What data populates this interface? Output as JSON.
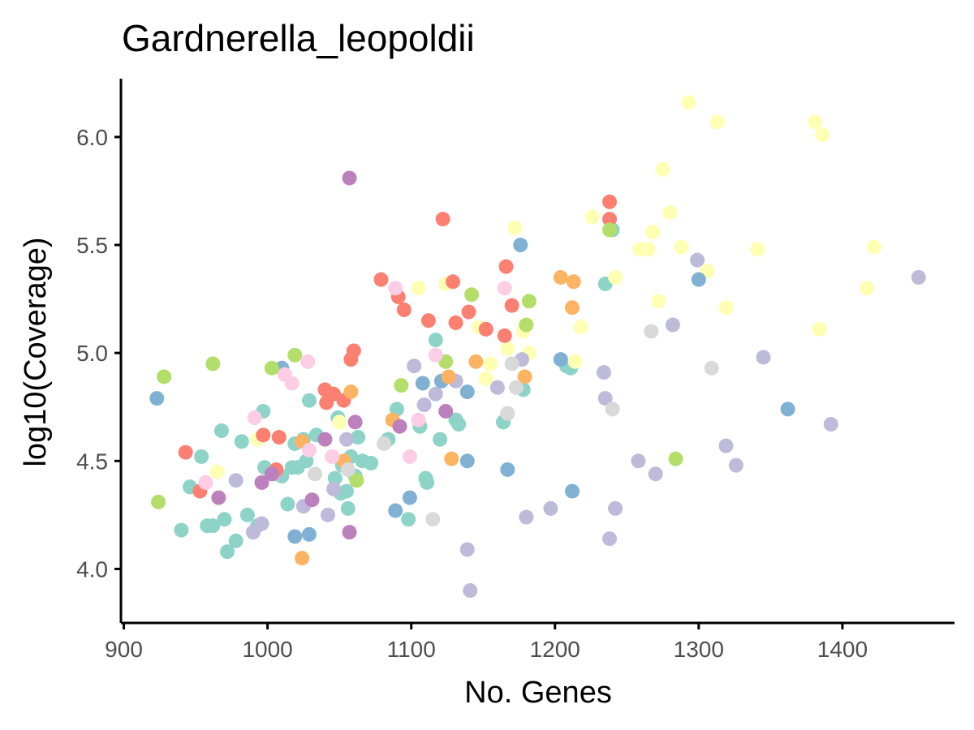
{
  "chart_data": {
    "type": "scatter",
    "title": "Gardnerella_leopoldii",
    "xlabel": "No. Genes",
    "ylabel": "log10(Coverage)",
    "xlim": [
      898,
      1478
    ],
    "ylim": [
      3.75,
      6.27
    ],
    "xticks": [
      900,
      1000,
      1100,
      1200,
      1300,
      1400
    ],
    "yticks": [
      4.0,
      4.5,
      5.0,
      5.5,
      6.0
    ],
    "ytick_labels": [
      "4.0",
      "4.5",
      "5.0",
      "5.5",
      "6.0"
    ],
    "grid": false,
    "legend": "none",
    "palette": [
      "#8DD3C7",
      "#FFFFB3",
      "#BEBADA",
      "#FB8072",
      "#80B1D3",
      "#FDB462",
      "#B3DE69",
      "#FCCDE5",
      "#D9D9D9",
      "#BC80BD"
    ],
    "series": [
      {
        "color": "#8DD3C7",
        "x": [
          940,
          946,
          954,
          958,
          962,
          968,
          970,
          972,
          978,
          982,
          986,
          993,
          997,
          998,
          1010,
          1014,
          1017,
          1019,
          1021,
          1025,
          1027,
          1029,
          1034,
          1047,
          1049,
          1051,
          1052,
          1055,
          1056,
          1058,
          1061,
          1063,
          1066,
          1072,
          1084,
          1090,
          1098,
          1106,
          1110,
          1111,
          1117,
          1120,
          1131,
          1133,
          1164,
          1178,
          1208,
          1211,
          1235,
          1240
        ],
        "y": [
          4.18,
          4.38,
          4.52,
          4.2,
          4.2,
          4.64,
          4.23,
          4.08,
          4.13,
          4.59,
          4.25,
          4.2,
          4.73,
          4.47,
          4.43,
          4.3,
          4.47,
          4.58,
          4.47,
          4.6,
          4.5,
          4.78,
          4.62,
          4.42,
          4.7,
          4.35,
          4.48,
          4.36,
          4.28,
          4.52,
          4.43,
          4.61,
          4.5,
          4.49,
          4.6,
          4.74,
          4.23,
          4.66,
          4.42,
          4.4,
          5.06,
          4.6,
          4.69,
          4.67,
          4.68,
          4.83,
          4.94,
          4.93,
          5.32,
          5.57
        ]
      },
      {
        "color": "#FFFFB3",
        "x": [
          965,
          993,
          1043,
          1050,
          1105,
          1124,
          1147,
          1152,
          1155,
          1167,
          1172,
          1178,
          1182,
          1214,
          1218,
          1226,
          1242,
          1259,
          1265,
          1268,
          1272,
          1275,
          1280,
          1288,
          1293,
          1306,
          1313,
          1319,
          1341,
          1381,
          1384,
          1386,
          1417,
          1422
        ],
        "y": [
          4.45,
          4.6,
          4.82,
          4.68,
          5.3,
          5.32,
          5.12,
          4.88,
          4.95,
          5.02,
          5.58,
          5.1,
          5.0,
          4.96,
          5.12,
          5.63,
          5.35,
          5.48,
          5.48,
          5.56,
          5.24,
          5.85,
          5.65,
          5.49,
          6.16,
          5.38,
          6.07,
          5.21,
          5.48,
          6.07,
          5.11,
          6.01,
          5.3,
          5.49
        ]
      },
      {
        "color": "#BEBADA",
        "x": [
          978,
          990,
          996,
          1005,
          1025,
          1042,
          1046,
          1055,
          1102,
          1109,
          1117,
          1131,
          1139,
          1141,
          1160,
          1167,
          1177,
          1180,
          1197,
          1234,
          1235,
          1238,
          1242,
          1258,
          1270,
          1282,
          1299,
          1319,
          1326,
          1345,
          1392,
          1453
        ],
        "y": [
          4.41,
          4.17,
          4.21,
          4.44,
          4.29,
          4.25,
          4.37,
          4.6,
          4.94,
          4.76,
          4.81,
          4.87,
          4.09,
          3.9,
          4.84,
          4.72,
          4.97,
          4.24,
          4.28,
          4.91,
          4.79,
          4.14,
          4.28,
          4.5,
          4.44,
          5.13,
          5.43,
          4.57,
          4.48,
          4.98,
          4.67,
          5.35
        ]
      },
      {
        "color": "#FB8072",
        "x": [
          943,
          953,
          997,
          1006,
          1008,
          1040,
          1041,
          1046,
          1053,
          1058,
          1060,
          1079,
          1091,
          1095,
          1112,
          1122,
          1129,
          1131,
          1140,
          1152,
          1165,
          1166,
          1170,
          1238,
          1238
        ],
        "y": [
          4.54,
          4.36,
          4.62,
          4.46,
          4.61,
          4.83,
          4.77,
          4.81,
          4.78,
          4.97,
          5.01,
          5.34,
          5.26,
          5.2,
          5.15,
          5.62,
          5.33,
          5.14,
          5.19,
          5.11,
          5.08,
          5.4,
          5.22,
          5.62,
          5.7
        ]
      },
      {
        "color": "#80B1D3",
        "x": [
          923,
          1010,
          1019,
          1029,
          1089,
          1099,
          1108,
          1121,
          1139,
          1139,
          1167,
          1176,
          1204,
          1212,
          1300,
          1362
        ],
        "y": [
          4.79,
          4.93,
          4.15,
          4.16,
          4.27,
          4.33,
          4.86,
          4.87,
          4.82,
          4.5,
          4.46,
          5.5,
          4.97,
          4.36,
          5.34,
          4.74
        ],
        "note_colors": "steelblue"
      },
      {
        "color": "#FDB462",
        "x": [
          1024,
          1024,
          1053,
          1058,
          1087,
          1126,
          1128,
          1145,
          1179,
          1204,
          1212,
          1213
        ],
        "y": [
          4.59,
          4.05,
          4.5,
          4.82,
          4.69,
          4.89,
          4.51,
          4.96,
          4.89,
          5.35,
          5.21,
          5.33
        ]
      },
      {
        "color": "#B3DE69",
        "x": [
          924,
          928,
          962,
          1003,
          1019,
          1062,
          1093,
          1124,
          1142,
          1180,
          1182,
          1238,
          1284
        ],
        "y": [
          4.31,
          4.89,
          4.95,
          4.93,
          4.99,
          4.41,
          4.85,
          4.96,
          5.27,
          5.13,
          5.24,
          5.57,
          4.51
        ]
      },
      {
        "color": "#FCCDE5",
        "x": [
          957,
          991,
          1012,
          1017,
          1028,
          1029,
          1045,
          1089,
          1099,
          1105,
          1117,
          1165
        ],
        "y": [
          4.4,
          4.7,
          4.9,
          4.86,
          4.96,
          4.55,
          4.52,
          5.3,
          4.52,
          4.69,
          4.99,
          5.3
        ]
      },
      {
        "color": "#D9D9D9",
        "x": [
          1033,
          1056,
          1081,
          1115,
          1167,
          1170,
          1173,
          1240,
          1267,
          1309
        ],
        "y": [
          4.44,
          4.46,
          4.58,
          4.23,
          4.72,
          4.95,
          4.84,
          4.74,
          5.1,
          4.93
        ]
      },
      {
        "color": "#BC80BD",
        "x": [
          966,
          996,
          1003,
          1031,
          1040,
          1057,
          1057,
          1061,
          1092,
          1124
        ],
        "y": [
          4.33,
          4.4,
          4.44,
          4.32,
          4.6,
          5.81,
          4.17,
          4.68,
          4.66,
          4.73
        ]
      }
    ]
  }
}
